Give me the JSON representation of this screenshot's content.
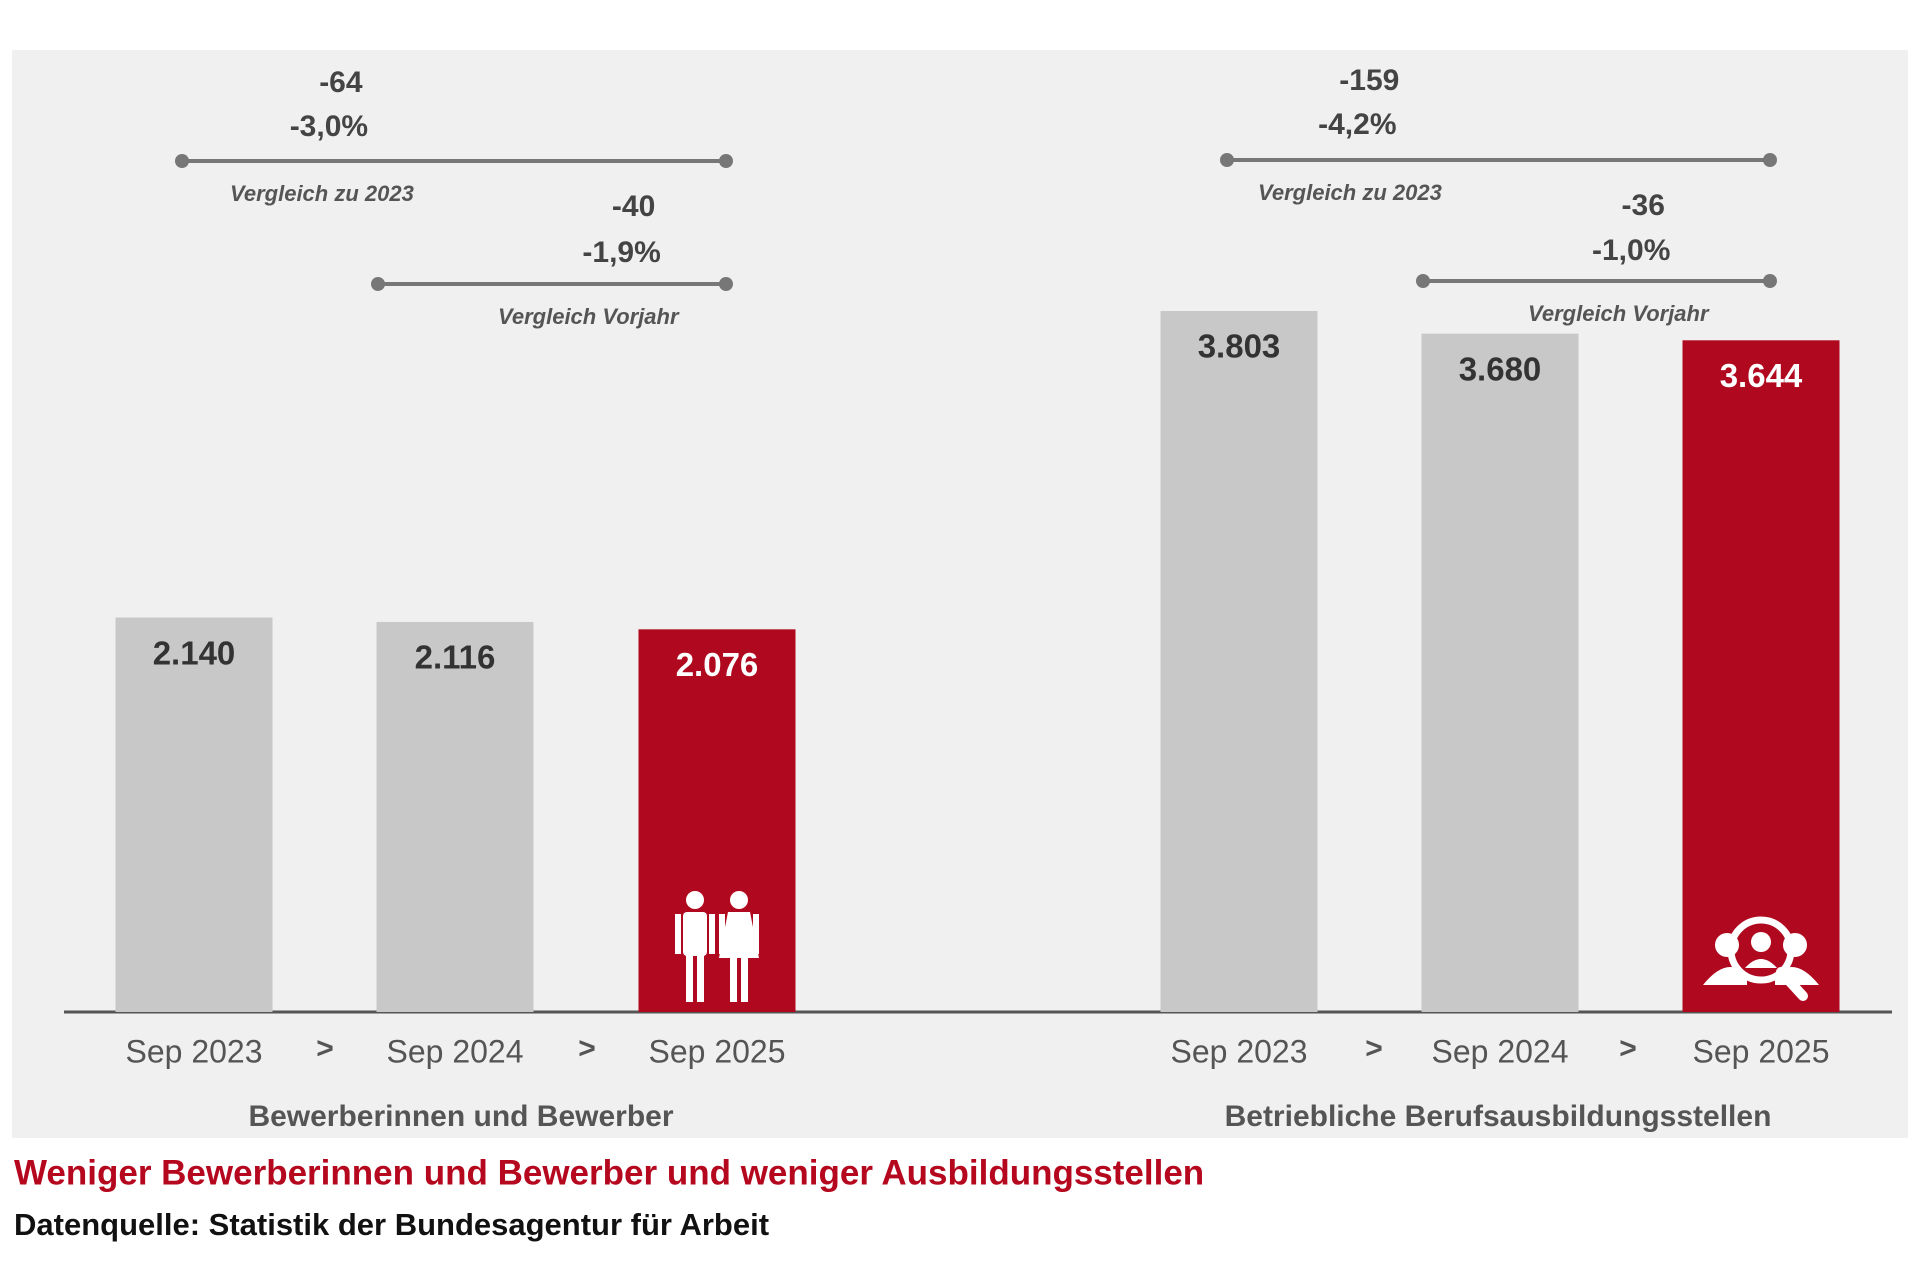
{
  "chart_data": [
    {
      "type": "bar",
      "group_label": "Bewerberinnen und Bewerber",
      "categories": [
        "Sep 2023",
        "Sep 2024",
        "Sep 2025"
      ],
      "separator": ">",
      "values": [
        2140,
        2116,
        2076
      ],
      "value_labels": [
        "2.140",
        "2.116",
        "2.076"
      ],
      "colors": [
        "#c8c8c8",
        "#c8c8c8",
        "#b0081e"
      ],
      "annotations": [
        {
          "from": 0,
          "to": 2,
          "label": "Vergleich zu 2023",
          "texts": [
            "-64",
            "-3,0%"
          ]
        },
        {
          "from": 1,
          "to": 2,
          "label": "Vergleich Vorjahr",
          "texts": [
            "-40",
            "-1,9%"
          ]
        }
      ]
    },
    {
      "type": "bar",
      "group_label": "Betriebliche Berufsausbildungsstellen",
      "categories": [
        "Sep 2023",
        "Sep 2024",
        "Sep 2025"
      ],
      "separator": ">",
      "values": [
        3803,
        3680,
        3644
      ],
      "value_labels": [
        "3.803",
        "3.680",
        "3.644"
      ],
      "colors": [
        "#c8c8c8",
        "#c8c8c8",
        "#b0081e"
      ],
      "annotations": [
        {
          "from": 0,
          "to": 2,
          "label": "Vergleich zu 2023",
          "texts": [
            "-159",
            "-4,2%"
          ]
        },
        {
          "from": 1,
          "to": 2,
          "label": "Vergleich Vorjahr",
          "texts": [
            "-36",
            "-1,0%"
          ]
        }
      ]
    }
  ],
  "footer": {
    "title": "Weniger Bewerberinnen und Bewerber und weniger Ausbildungsstellen",
    "source": "Datenquelle: Statistik der Bundesagentur für Arbeit"
  }
}
